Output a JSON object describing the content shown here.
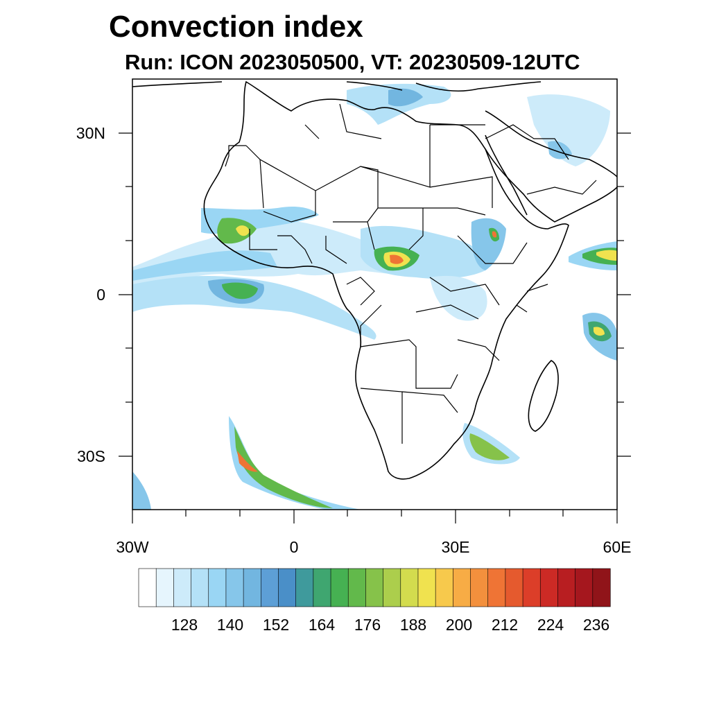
{
  "title": "Convection index",
  "subtitle": "Run: ICON 2023050500,  VT: 20230509-12UTC",
  "map": {
    "lon_range": [
      -30,
      60
    ],
    "lat_range": [
      -40,
      40
    ],
    "lat_ticks": [
      {
        "value": 30,
        "label": "30N"
      },
      {
        "value": 0,
        "label": "0"
      },
      {
        "value": -30,
        "label": "30S"
      }
    ],
    "lon_ticks": [
      {
        "value": -30,
        "label": "30W"
      },
      {
        "value": 0,
        "label": "0"
      },
      {
        "value": 30,
        "label": "30E"
      },
      {
        "value": 60,
        "label": "60E"
      }
    ]
  },
  "colorbar": {
    "colors": [
      "#ffffff",
      "#e6f5fd",
      "#cdebfa",
      "#b4e1f7",
      "#9ad6f4",
      "#86c6ea",
      "#72b6e0",
      "#5d9fd6",
      "#4a8fc8",
      "#3f9a9c",
      "#3fa670",
      "#46b152",
      "#62b94b",
      "#86c24a",
      "#acce4c",
      "#d3dc4e",
      "#f0e24f",
      "#f7c94c",
      "#f7ac45",
      "#f3903d",
      "#ef7435",
      "#e55a2e",
      "#dc3e29",
      "#cc2a25",
      "#b81e21",
      "#a5171e",
      "#901419"
    ],
    "labels": [
      "128",
      "140",
      "152",
      "164",
      "176",
      "188",
      "200",
      "212",
      "224",
      "236"
    ]
  }
}
